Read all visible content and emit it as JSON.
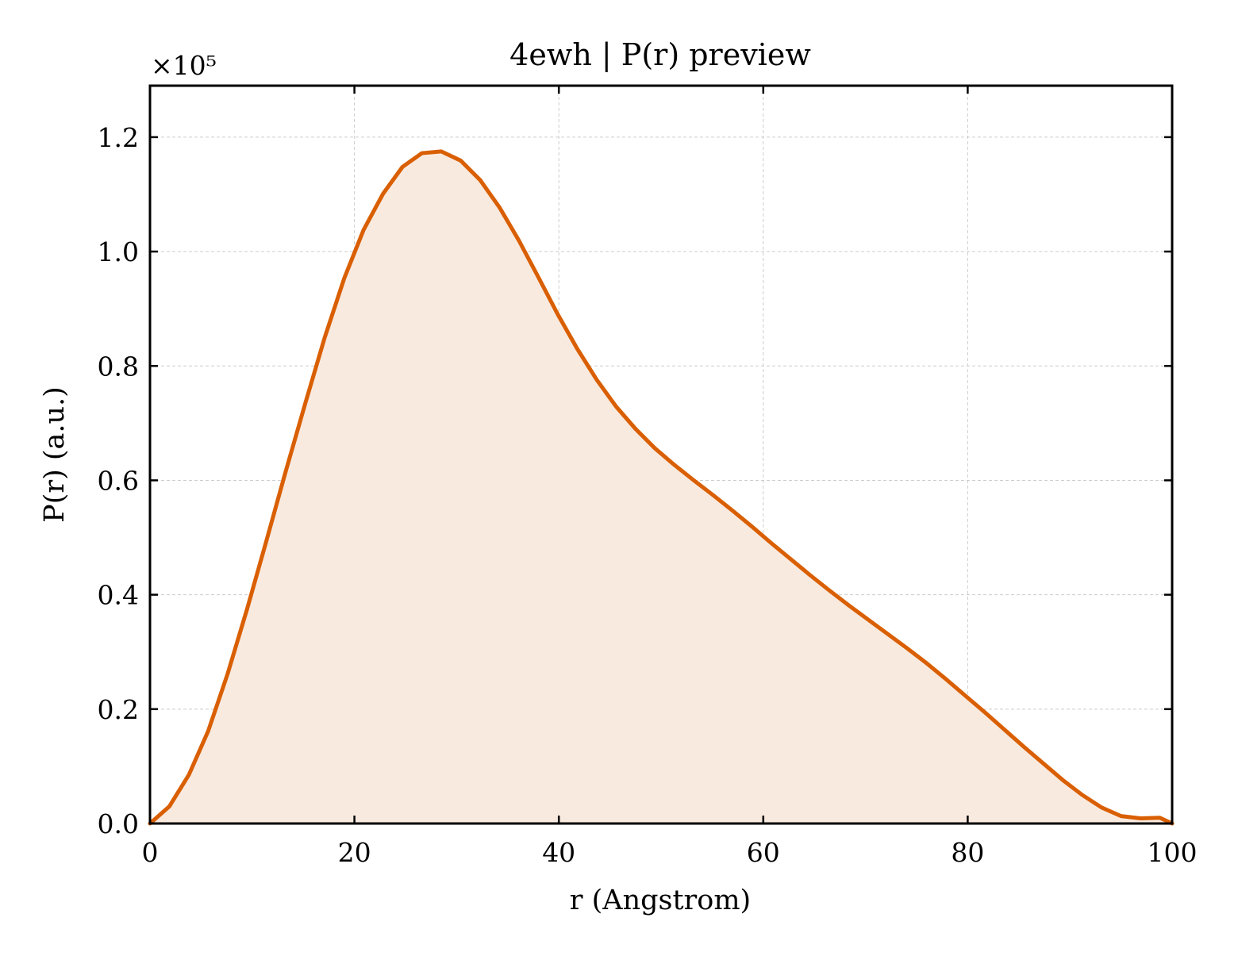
{
  "chart_data": {
    "type": "area",
    "title": "4ewh | P(r) preview",
    "xlabel": "r (Angstrom)",
    "ylabel": "P(r) (a.u.)",
    "y_multiplier_label": "×10⁵",
    "y_scale": 100000,
    "xlim": [
      0,
      100
    ],
    "ylim": [
      0,
      1.29
    ],
    "x_ticks": [
      0,
      20,
      40,
      60,
      80,
      100
    ],
    "x_tick_labels": [
      "0",
      "20",
      "40",
      "60",
      "80",
      "100"
    ],
    "y_ticks": [
      0.0,
      0.2,
      0.4,
      0.6,
      0.8,
      1.0,
      1.2
    ],
    "y_tick_labels": [
      "0.0",
      "0.2",
      "0.4",
      "0.6",
      "0.8",
      "1.0",
      "1.2"
    ],
    "grid": true,
    "colors": {
      "line": "#d95f02",
      "fill": "#f9eae0",
      "grid": "#cccccc",
      "axes": "#000000"
    },
    "series": [
      {
        "x": [
          0,
          1.9,
          3.8,
          5.7,
          7.6,
          9.5,
          11.4,
          13.3,
          15.2,
          17.1,
          19.0,
          20.9,
          22.8,
          24.7,
          26.6,
          28.5,
          30.4,
          32.3,
          34.2,
          36.1,
          38.0,
          39.9,
          41.8,
          43.7,
          45.6,
          47.5,
          49.4,
          51.3,
          53.2,
          55.1,
          57.0,
          58.9,
          60.8,
          62.7,
          64.6,
          66.5,
          68.4,
          70.3,
          72.2,
          74.1,
          76.0,
          77.9,
          79.8,
          81.7,
          83.6,
          85.5,
          87.4,
          89.3,
          91.2,
          93.1,
          95.0,
          96.9,
          98.8,
          100
        ],
        "y": [
          0.0,
          0.03,
          0.085,
          0.162,
          0.262,
          0.375,
          0.495,
          0.617,
          0.735,
          0.85,
          0.953,
          1.038,
          1.101,
          1.148,
          1.172,
          1.175,
          1.159,
          1.125,
          1.077,
          1.019,
          0.955,
          0.89,
          0.83,
          0.776,
          0.729,
          0.69,
          0.656,
          0.627,
          0.6,
          0.574,
          0.547,
          0.519,
          0.49,
          0.462,
          0.434,
          0.407,
          0.381,
          0.356,
          0.331,
          0.306,
          0.28,
          0.252,
          0.223,
          0.194,
          0.164,
          0.134,
          0.105,
          0.076,
          0.05,
          0.028,
          0.013,
          0.009,
          0.01,
          0.0
        ]
      }
    ]
  }
}
